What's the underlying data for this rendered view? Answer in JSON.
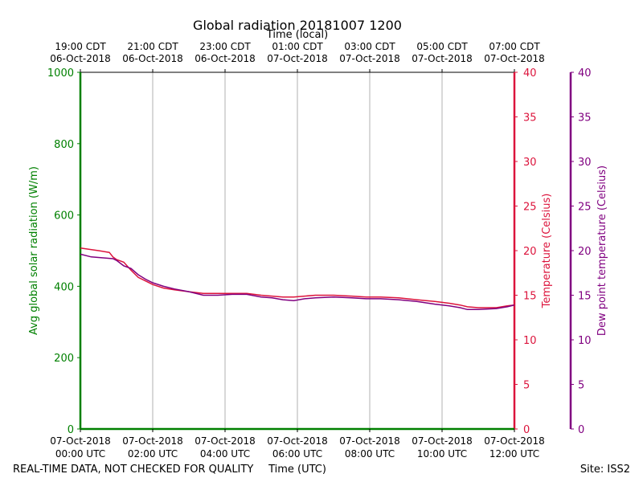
{
  "chart_data": {
    "type": "line",
    "title": "Global radiation 20181007 1200",
    "top_axis_label": "Time (local)",
    "xlabel": "Time (UTC)",
    "ylabel_left": "Avg global solar radiation (W/m)",
    "ylabel_right1": "Temperature (Celsius)",
    "ylabel_right2": "Dew point temperature (Celsius)",
    "footer_left": "REAL-TIME DATA, NOT CHECKED FOR QUALITY",
    "footer_right": "Site: ISS2",
    "x_range_hours": [
      0,
      12
    ],
    "ylim_left": [
      0,
      1000
    ],
    "ylim_temp": [
      0,
      40
    ],
    "ylim_dew": [
      0,
      40
    ],
    "grid": "vertical",
    "colors": {
      "radiation": "#008000",
      "temperature": "#dc143c",
      "dewpoint": "#800080",
      "grid": "#b0b0b0"
    },
    "bottom_ticks": [
      {
        "hour": 0,
        "line1": "07-Oct-2018",
        "line2": "00:00 UTC"
      },
      {
        "hour": 2,
        "line1": "07-Oct-2018",
        "line2": "02:00 UTC"
      },
      {
        "hour": 4,
        "line1": "07-Oct-2018",
        "line2": "04:00 UTC"
      },
      {
        "hour": 6,
        "line1": "07-Oct-2018",
        "line2": "06:00 UTC"
      },
      {
        "hour": 8,
        "line1": "07-Oct-2018",
        "line2": "08:00 UTC"
      },
      {
        "hour": 10,
        "line1": "07-Oct-2018",
        "line2": "10:00 UTC"
      },
      {
        "hour": 12,
        "line1": "07-Oct-2018",
        "line2": "12:00 UTC"
      }
    ],
    "top_ticks": [
      {
        "hour": 0,
        "line1": "19:00 CDT",
        "line2": "06-Oct-2018"
      },
      {
        "hour": 2,
        "line1": "21:00 CDT",
        "line2": "06-Oct-2018"
      },
      {
        "hour": 4,
        "line1": "23:00 CDT",
        "line2": "06-Oct-2018"
      },
      {
        "hour": 6,
        "line1": "01:00 CDT",
        "line2": "07-Oct-2018"
      },
      {
        "hour": 8,
        "line1": "03:00 CDT",
        "line2": "07-Oct-2018"
      },
      {
        "hour": 10,
        "line1": "05:00 CDT",
        "line2": "07-Oct-2018"
      },
      {
        "hour": 12,
        "line1": "07:00 CDT",
        "line2": "07-Oct-2018"
      }
    ],
    "left_ticks": [
      0,
      200,
      400,
      600,
      800,
      1000
    ],
    "temp_ticks": [
      0,
      5,
      10,
      15,
      20,
      25,
      30,
      35,
      40
    ],
    "dew_ticks": [
      0,
      5,
      10,
      15,
      20,
      25,
      30,
      35,
      40
    ],
    "series": [
      {
        "name": "Avg global solar radiation",
        "axis": "left",
        "x": [
          0,
          12
        ],
        "y": [
          0,
          0
        ]
      },
      {
        "name": "Temperature",
        "axis": "temp",
        "x": [
          0,
          0.5,
          0.8,
          0.9,
          1.0,
          1.2,
          1.4,
          1.6,
          1.8,
          2.0,
          2.3,
          2.6,
          3.0,
          3.4,
          3.8,
          4.2,
          4.6,
          5.0,
          5.3,
          5.6,
          5.9,
          6.2,
          6.5,
          7.0,
          7.5,
          7.9,
          8.3,
          8.8,
          9.3,
          9.8,
          10.2,
          10.5,
          10.7,
          11.0,
          11.5,
          11.8,
          12.0
        ],
        "y": [
          20.3,
          20.0,
          19.8,
          19.3,
          19.0,
          18.7,
          17.8,
          17.0,
          16.6,
          16.2,
          15.8,
          15.6,
          15.4,
          15.2,
          15.2,
          15.2,
          15.2,
          15.0,
          14.9,
          14.8,
          14.8,
          14.9,
          15.0,
          15.0,
          14.9,
          14.8,
          14.8,
          14.7,
          14.5,
          14.3,
          14.1,
          13.9,
          13.7,
          13.6,
          13.6,
          13.8,
          13.9
        ]
      },
      {
        "name": "Dew point",
        "axis": "dew",
        "x": [
          0,
          0.3,
          0.6,
          0.9,
          1.0,
          1.2,
          1.4,
          1.6,
          1.8,
          2.0,
          2.3,
          2.6,
          3.0,
          3.4,
          3.8,
          4.2,
          4.6,
          5.0,
          5.3,
          5.6,
          5.9,
          6.2,
          6.5,
          7.0,
          7.5,
          7.9,
          8.3,
          8.8,
          9.3,
          9.8,
          10.2,
          10.5,
          10.7,
          11.0,
          11.5,
          11.8,
          12.0
        ],
        "y": [
          19.6,
          19.3,
          19.2,
          19.1,
          18.9,
          18.3,
          18.0,
          17.3,
          16.8,
          16.4,
          16.0,
          15.7,
          15.4,
          15.0,
          15.0,
          15.1,
          15.1,
          14.8,
          14.7,
          14.5,
          14.4,
          14.6,
          14.7,
          14.8,
          14.7,
          14.6,
          14.6,
          14.5,
          14.3,
          14.0,
          13.8,
          13.6,
          13.4,
          13.4,
          13.5,
          13.7,
          13.9
        ]
      }
    ]
  }
}
